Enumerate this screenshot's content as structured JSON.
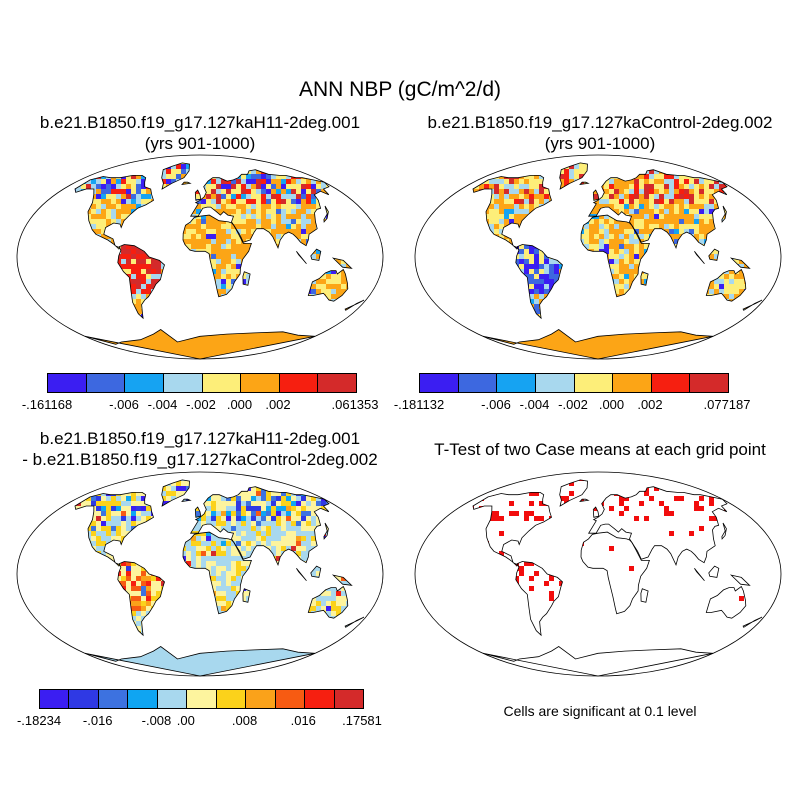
{
  "title": "ANN NBP (gC/m^2/d)",
  "panels": [
    {
      "title_line1": "b.e21.B1850.f19_g17.127kaH11-2deg.001",
      "title_line2": "(yrs 901-1000)",
      "colorbar": {
        "colors": [
          "#3b1ef2",
          "#3d68e0",
          "#16a3f2",
          "#a8d8ee",
          "#fdee79",
          "#fca516",
          "#f61f10",
          "#d42a2a"
        ],
        "labels": [
          "-.161168",
          "-.006",
          "-.004",
          "-.002",
          ".000",
          ".002",
          ".061353"
        ]
      }
    },
    {
      "title_line1": "b.e21.B1850.f19_g17.127kaControl-2deg.002",
      "title_line2": "(yrs 901-1000)",
      "colorbar": {
        "colors": [
          "#3b1ef2",
          "#3d68e0",
          "#16a3f2",
          "#a8d8ee",
          "#fdee79",
          "#fca516",
          "#f61f10",
          "#d42a2a"
        ],
        "labels": [
          "-.181132",
          "-.006",
          "-.004",
          "-.002",
          ".000",
          ".002",
          ".077187"
        ]
      }
    },
    {
      "title_line1": "b.e21.B1850.f19_g17.127kaH11-2deg.001",
      "title_line2": "- b.e21.B1850.f19_g17.127kaControl-2deg.002",
      "colorbar": {
        "colors": [
          "#3b1ef2",
          "#2f39e4",
          "#3d72e0",
          "#0fa5f2",
          "#a8d8ee",
          "#fdf49e",
          "#fbd21b",
          "#faa21a",
          "#f75b12",
          "#f61f10",
          "#d42a2a"
        ],
        "labels": [
          "-.18234",
          "-.016",
          "-.008",
          ".00",
          ".008",
          ".016",
          ".17581"
        ]
      }
    },
    {
      "title_line1": "T-Test of two Case means at each grid point",
      "note": "Cells are significant at 0.1 level"
    }
  ],
  "palette": {
    "ocean": "#ffffff",
    "significant": "#f20d0d",
    "antarctica_mean": "#fca516",
    "antarctica_diff": "#a8d8ee"
  }
}
